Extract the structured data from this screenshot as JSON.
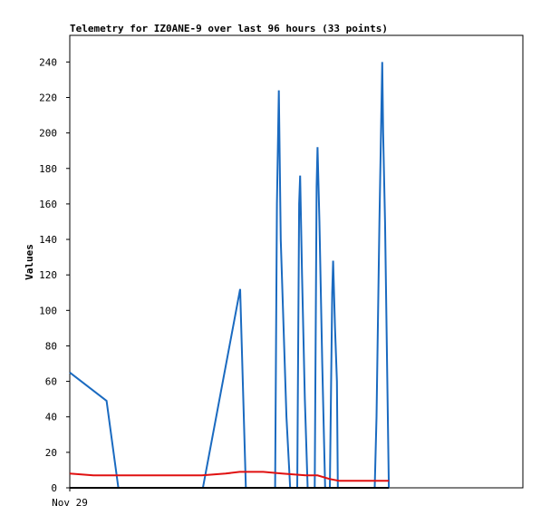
{
  "chart_data": {
    "type": "line",
    "title": "Telemetry for IZ0ANE-9 over last 96 hours (33 points)",
    "xlabel": "",
    "ylabel": "Values",
    "x_tick_labels": [
      {
        "x": 0,
        "label": "Nov 29"
      }
    ],
    "xlim": [
      0,
      96
    ],
    "ylim": [
      0,
      255
    ],
    "y_ticks": [
      0,
      20,
      40,
      60,
      80,
      100,
      120,
      140,
      160,
      180,
      200,
      220,
      240
    ],
    "grid": false,
    "legend": false,
    "colors": {
      "blue": "#1a6ac0",
      "red": "#e01010",
      "black": "#000000",
      "frame": "#000000"
    },
    "series": [
      {
        "color": "blue",
        "points": [
          [
            0,
            65
          ],
          [
            7.8,
            49
          ],
          [
            10.3,
            0
          ],
          [
            28.2,
            0
          ],
          [
            36.1,
            112
          ],
          [
            37.3,
            0
          ],
          [
            43.5,
            0
          ],
          [
            43.9,
            160
          ],
          [
            44.3,
            224
          ],
          [
            44.7,
            140
          ],
          [
            45.9,
            40
          ],
          [
            46.7,
            0
          ],
          [
            48.2,
            0
          ],
          [
            48.6,
            160
          ],
          [
            48.8,
            176
          ],
          [
            49.2,
            120
          ],
          [
            49.8,
            50
          ],
          [
            50.4,
            0
          ],
          [
            51.9,
            0
          ],
          [
            52.3,
            170
          ],
          [
            52.5,
            192
          ],
          [
            52.9,
            150
          ],
          [
            53.5,
            70
          ],
          [
            54.1,
            0
          ],
          [
            55.1,
            0
          ],
          [
            55.6,
            110
          ],
          [
            55.8,
            128
          ],
          [
            56.2,
            90
          ],
          [
            56.6,
            60
          ],
          [
            56.8,
            0
          ],
          [
            64.6,
            0
          ],
          [
            65.0,
            40
          ],
          [
            65.6,
            150
          ],
          [
            66.2,
            240
          ],
          [
            66.4,
            200
          ],
          [
            66.8,
            150
          ],
          [
            67.6,
            0
          ]
        ]
      },
      {
        "color": "red",
        "points": [
          [
            0,
            8
          ],
          [
            5.0,
            7
          ],
          [
            28.0,
            7
          ],
          [
            33.0,
            8
          ],
          [
            36.0,
            9
          ],
          [
            41.0,
            9
          ],
          [
            45.0,
            8
          ],
          [
            50.0,
            7
          ],
          [
            52.5,
            7
          ],
          [
            55.0,
            5
          ],
          [
            57.0,
            4
          ],
          [
            67.6,
            4
          ]
        ]
      },
      {
        "color": "black",
        "points": [
          [
            0,
            0
          ],
          [
            67.6,
            0
          ]
        ]
      }
    ]
  }
}
